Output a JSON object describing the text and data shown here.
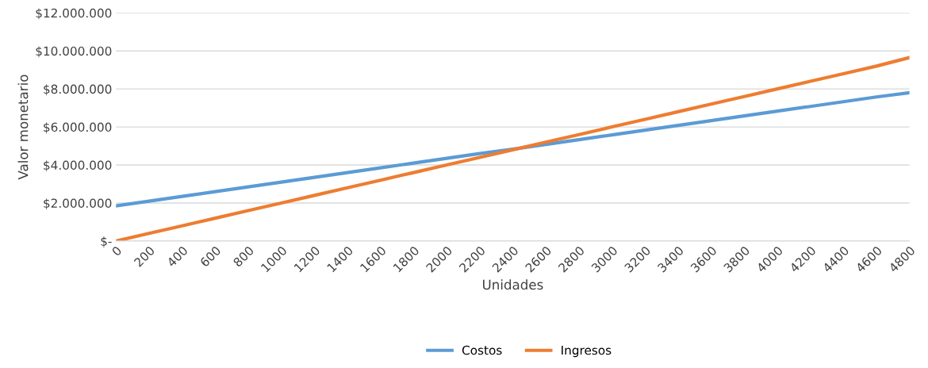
{
  "chart_data": {
    "type": "line",
    "xlabel": "Unidades",
    "ylabel": "Valor monetario",
    "categories": [
      "0",
      "200",
      "400",
      "600",
      "800",
      "1000",
      "1200",
      "1400",
      "1600",
      "1800",
      "2000",
      "2200",
      "2400",
      "2600",
      "2800",
      "3000",
      "3200",
      "3400",
      "3600",
      "3800",
      "4000",
      "4200",
      "4400",
      "4600",
      "4800"
    ],
    "series": [
      {
        "name": "Costos",
        "color": "#5b9bd5",
        "values": [
          1850000,
          2100000,
          2350000,
          2600000,
          2850000,
          3100000,
          3350000,
          3600000,
          3850000,
          4100000,
          4350000,
          4600000,
          4830000,
          5080000,
          5330000,
          5580000,
          5830000,
          6080000,
          6330000,
          6580000,
          6830000,
          7080000,
          7330000,
          7580000,
          7800000
        ]
      },
      {
        "name": "Ingresos",
        "color": "#ed7d31",
        "values": [
          0,
          400000,
          800000,
          1200000,
          1600000,
          2000000,
          2400000,
          2800000,
          3200000,
          3600000,
          4000000,
          4400000,
          4800000,
          5200000,
          5600000,
          6000000,
          6400000,
          6800000,
          7200000,
          7600000,
          8000000,
          8400000,
          8800000,
          9200000,
          9650000
        ]
      }
    ],
    "ylim": [
      0,
      12000000
    ],
    "yticks": [
      {
        "value": 0,
        "label": "$-"
      },
      {
        "value": 2000000,
        "label": "$2.000.000"
      },
      {
        "value": 4000000,
        "label": "$4.000.000"
      },
      {
        "value": 6000000,
        "label": "$6.000.000"
      },
      {
        "value": 8000000,
        "label": "$8.000.000"
      },
      {
        "value": 10000000,
        "label": "$10.000.000"
      },
      {
        "value": 12000000,
        "label": "$12.000.000"
      }
    ],
    "grid": "y",
    "legend": "bottom",
    "marker": "none",
    "line_style": "solid"
  }
}
